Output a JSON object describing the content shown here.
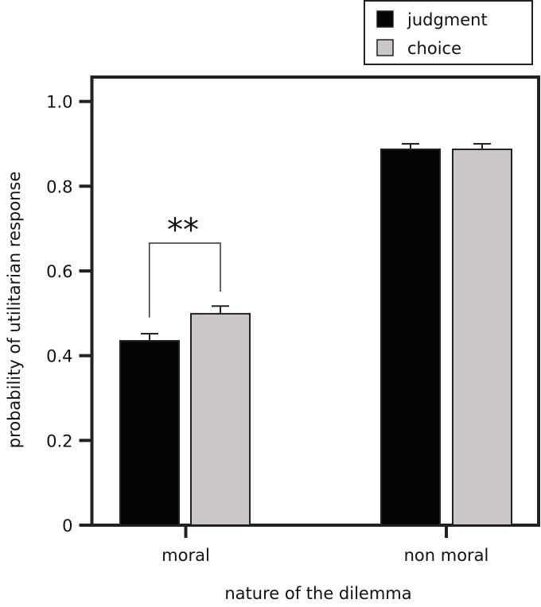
{
  "chart_data": {
    "type": "bar",
    "categories": [
      "moral",
      "non moral"
    ],
    "series": [
      {
        "name": "judgment",
        "values": [
          0.435,
          0.887
        ],
        "error_upper": [
          0.452,
          0.9
        ],
        "color": "#050505"
      },
      {
        "name": "choice",
        "values": [
          0.499,
          0.887
        ],
        "error_upper": [
          0.517,
          0.9
        ],
        "color": "#ccc6c6"
      }
    ],
    "xlabel": "nature of the dilemma",
    "ylabel": "probability of utilitarian response",
    "ylim": [
      0,
      1.0
    ],
    "yticks": [
      "0",
      "0.2",
      "0.4",
      "0.6",
      "0.8",
      "1.0"
    ],
    "legend_position": "top-right",
    "annotations": [
      {
        "text": "**",
        "category": "moral",
        "between": [
          "judgment",
          "choice"
        ]
      }
    ],
    "grid": false
  }
}
